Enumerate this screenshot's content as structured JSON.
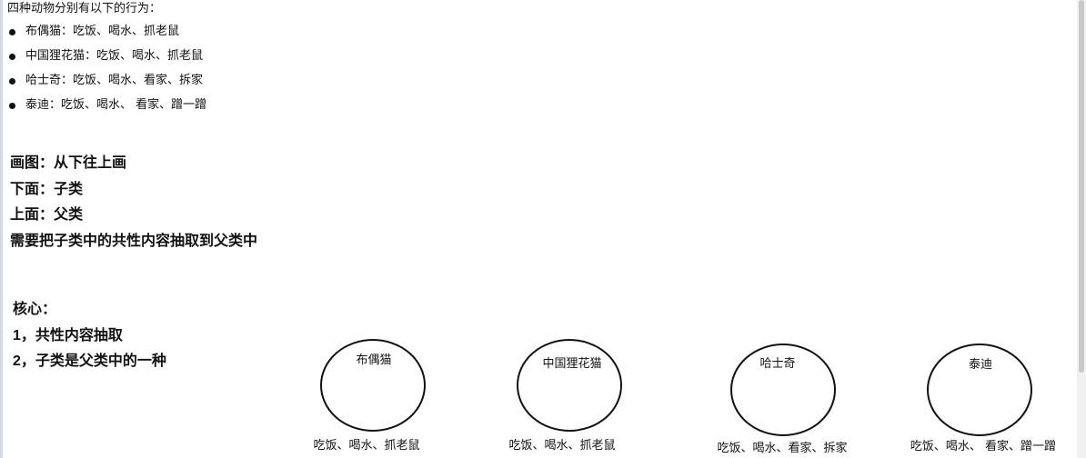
{
  "intro": "四种动物分别有以下的行为：",
  "animals": [
    {
      "name": "布偶猫",
      "behaviors": "吃饭、喝水、抓老鼠",
      "bullet_text": "布偶猫：吃饭、喝水、抓老鼠"
    },
    {
      "name": "中国狸花猫",
      "behaviors": "吃饭、喝水、抓老鼠",
      "bullet_text": "中国狸花猫：吃饭、喝水、抓老鼠"
    },
    {
      "name": "哈士奇",
      "behaviors": "吃饭、喝水、看家、拆家",
      "bullet_text": "哈士奇：吃饭、喝水、看家、拆家"
    },
    {
      "name": "泰迪",
      "behaviors": "吃饭、喝水、 看家、蹭一蹭",
      "bullet_text": "泰迪：吃饭、喝水、 看家、蹭一蹭"
    }
  ],
  "drawing_notes": [
    "画图：从下往上画",
    "下面：子类",
    "上面：父类",
    "需要把子类中的共性内容抽取到父类中"
  ],
  "core": {
    "title": "核心：",
    "points": [
      "1，共性内容抽取",
      "2，子类是父类中的一种"
    ]
  }
}
